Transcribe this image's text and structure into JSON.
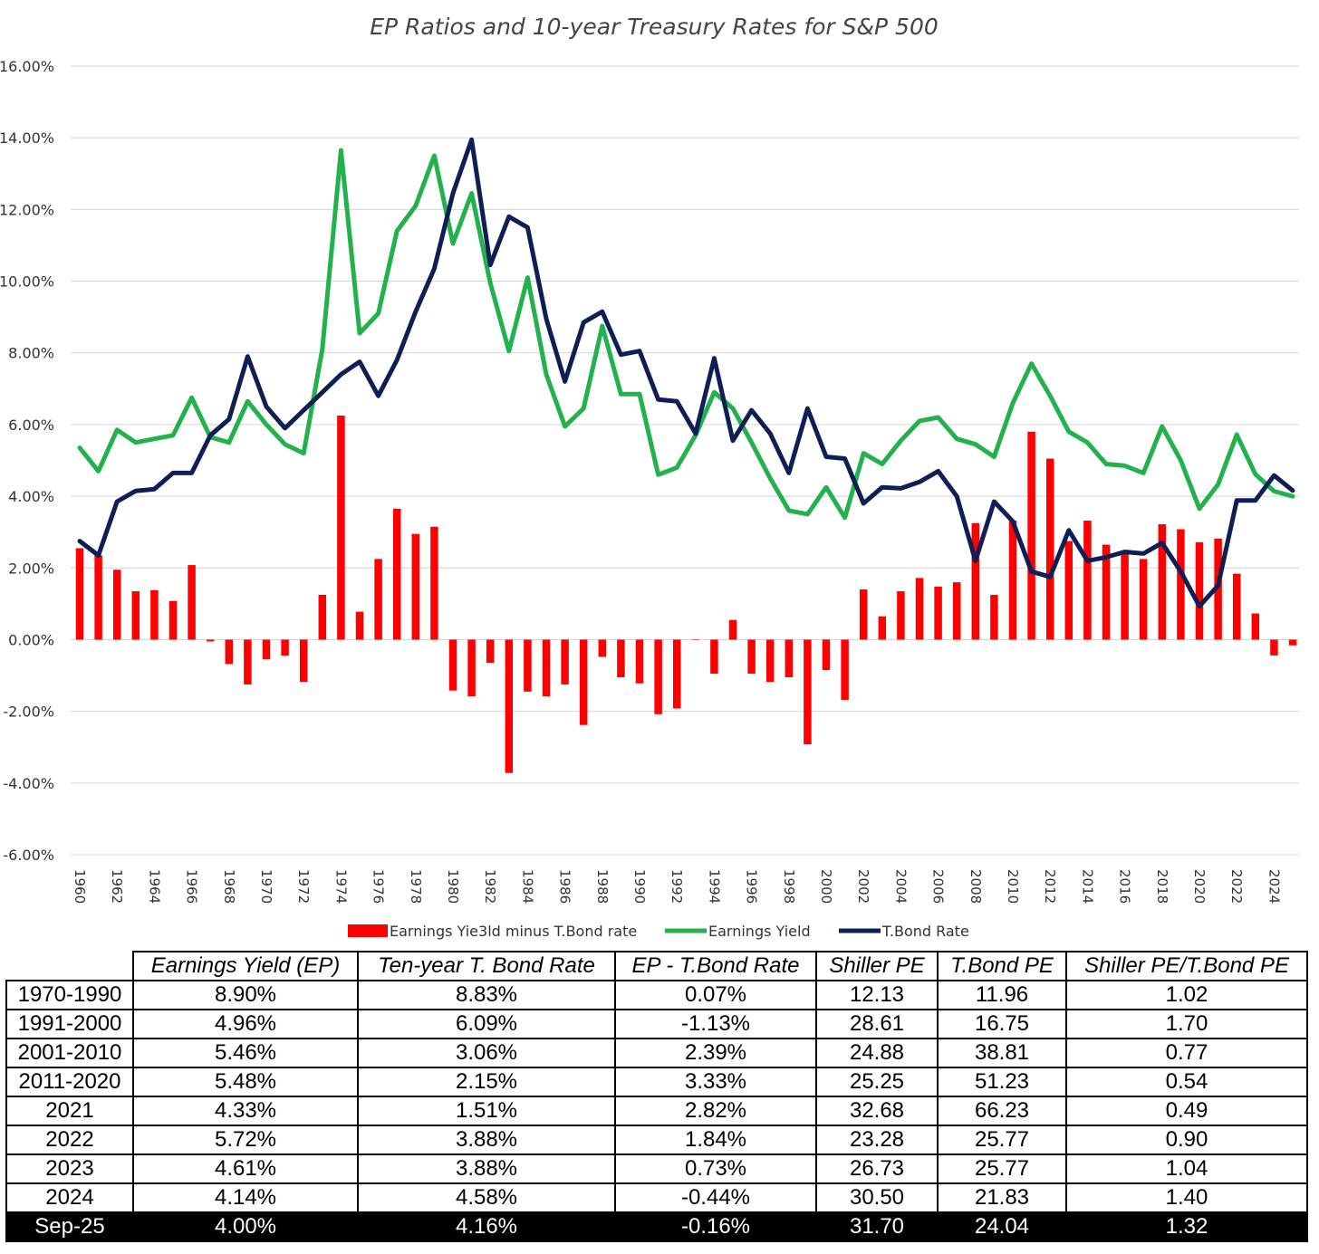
{
  "chart_data": {
    "type": "bar+line",
    "title": "EP Ratios and 10-year Treasury Rates for S&P 500",
    "ylim": [
      -6,
      16
    ],
    "y_ticks": [
      16,
      14,
      12,
      10,
      8,
      6,
      4,
      2,
      0,
      -2,
      -4,
      -6
    ],
    "y_tick_labels": [
      "16.00%",
      "14.00%",
      "12.00%",
      "10.00%",
      "8.00%",
      "6.00%",
      "4.00%",
      "2.00%",
      "0.00%",
      "-2.00%",
      "-4.00%",
      "-6.00%"
    ],
    "x_tick_labels": [
      "1960",
      "1962",
      "1964",
      "1966",
      "1968",
      "1970",
      "1972",
      "1974",
      "1976",
      "1978",
      "1980",
      "1982",
      "1984",
      "1986",
      "1988",
      "1990",
      "1992",
      "1994",
      "1996",
      "1998",
      "2000",
      "2002",
      "2004",
      "2006",
      "2008",
      "2010",
      "2012",
      "2014",
      "2016",
      "2018",
      "2020",
      "2022",
      "2024"
    ],
    "years": [
      1960,
      1961,
      1962,
      1963,
      1964,
      1965,
      1966,
      1967,
      1968,
      1969,
      1970,
      1971,
      1972,
      1973,
      1974,
      1975,
      1976,
      1977,
      1978,
      1979,
      1980,
      1981,
      1982,
      1983,
      1984,
      1985,
      1986,
      1987,
      1988,
      1989,
      1990,
      1991,
      1992,
      1993,
      1994,
      1995,
      1996,
      1997,
      1998,
      1999,
      2000,
      2001,
      2002,
      2003,
      2004,
      2005,
      2006,
      2007,
      2008,
      2009,
      2010,
      2011,
      2012,
      2013,
      2014,
      2015,
      2016,
      2017,
      2018,
      2019,
      2020,
      2021,
      2022,
      2023,
      2024,
      2025
    ],
    "series": [
      {
        "name": "Earnings Yie3ld minus T.Bond rate",
        "kind": "bar",
        "color": "#ff0000",
        "values": [
          2.55,
          2.35,
          1.95,
          1.35,
          1.38,
          1.08,
          2.08,
          -0.05,
          -0.68,
          -1.25,
          -0.55,
          -0.45,
          -1.18,
          1.25,
          6.25,
          0.78,
          2.25,
          3.65,
          2.95,
          3.15,
          -1.42,
          -1.58,
          -0.65,
          -3.72,
          -1.45,
          -1.58,
          -1.25,
          -2.38,
          -0.48,
          -1.05,
          -1.22,
          -2.08,
          -1.92,
          0.0,
          -0.95,
          0.55,
          -0.95,
          -1.18,
          -1.05,
          -2.92,
          -0.85,
          -1.68,
          1.4,
          0.65,
          1.35,
          1.72,
          1.48,
          1.6,
          3.25,
          1.25,
          3.32,
          5.8,
          5.05,
          2.75,
          3.32,
          2.65,
          2.4,
          2.25,
          3.22,
          3.08,
          2.72,
          2.82,
          1.84,
          0.73,
          -0.44,
          -0.16
        ]
      },
      {
        "name": "Earnings Yield",
        "kind": "line",
        "color": "#22b14c",
        "values": [
          5.35,
          4.7,
          5.85,
          5.5,
          5.6,
          5.7,
          6.75,
          5.65,
          5.5,
          6.65,
          6.0,
          5.45,
          5.2,
          8.1,
          13.65,
          8.55,
          9.1,
          11.4,
          12.1,
          13.5,
          11.05,
          12.45,
          9.95,
          8.05,
          10.1,
          7.4,
          5.95,
          6.45,
          8.75,
          6.85,
          6.85,
          4.6,
          4.8,
          5.7,
          6.9,
          6.45,
          5.5,
          4.5,
          3.6,
          3.5,
          4.25,
          3.4,
          5.2,
          4.9,
          5.55,
          6.1,
          6.2,
          5.6,
          5.45,
          5.1,
          6.6,
          7.7,
          6.8,
          5.8,
          5.5,
          4.9,
          4.85,
          4.65,
          5.95,
          5.0,
          3.65,
          4.33,
          5.72,
          4.61,
          4.14,
          4.0
        ]
      },
      {
        "name": "T.Bond Rate",
        "kind": "line",
        "color": "#0f1f55",
        "values": [
          2.75,
          2.35,
          3.85,
          4.15,
          4.2,
          4.65,
          4.65,
          5.7,
          6.15,
          7.9,
          6.5,
          5.9,
          6.4,
          6.9,
          7.4,
          7.75,
          6.8,
          7.8,
          9.15,
          10.35,
          12.45,
          13.95,
          10.45,
          11.8,
          11.5,
          8.95,
          7.2,
          8.85,
          9.15,
          7.95,
          8.05,
          6.7,
          6.65,
          5.75,
          7.85,
          5.55,
          6.4,
          5.75,
          4.65,
          6.45,
          5.1,
          5.05,
          3.8,
          4.25,
          4.22,
          4.4,
          4.7,
          4.0,
          2.2,
          3.85,
          3.3,
          1.9,
          1.75,
          3.05,
          2.2,
          2.3,
          2.45,
          2.4,
          2.7,
          1.9,
          0.93,
          1.51,
          3.88,
          3.88,
          4.58,
          4.16
        ]
      }
    ],
    "legend": [
      "Earnings Yie3ld minus T.Bond rate",
      "Earnings Yield",
      "T.Bond Rate"
    ],
    "legend_position": "bottom-center",
    "grid": true
  },
  "summary_table": {
    "headers": [
      "",
      "Earnings Yield (EP)",
      "Ten-year T. Bond Rate",
      "EP - T.Bond Rate",
      "Shiller PE",
      "T.Bond PE",
      "Shiller PE/T.Bond PE"
    ],
    "rows": [
      [
        "1970-1990",
        "8.90%",
        "8.83%",
        "0.07%",
        "12.13",
        "11.96",
        "1.02"
      ],
      [
        "1991-2000",
        "4.96%",
        "6.09%",
        "-1.13%",
        "28.61",
        "16.75",
        "1.70"
      ],
      [
        "2001-2010",
        "5.46%",
        "3.06%",
        "2.39%",
        "24.88",
        "38.81",
        "0.77"
      ],
      [
        "2011-2020",
        "5.48%",
        "2.15%",
        "3.33%",
        "25.25",
        "51.23",
        "0.54"
      ],
      [
        "2021",
        "4.33%",
        "1.51%",
        "2.82%",
        "32.68",
        "66.23",
        "0.49"
      ],
      [
        "2022",
        "5.72%",
        "3.88%",
        "1.84%",
        "23.28",
        "25.77",
        "0.90"
      ],
      [
        "2023",
        "4.61%",
        "3.88%",
        "0.73%",
        "26.73",
        "25.77",
        "1.04"
      ],
      [
        "2024",
        "4.14%",
        "4.58%",
        "-0.44%",
        "30.50",
        "21.83",
        "1.40"
      ],
      [
        "Sep-25",
        "4.00%",
        "4.16%",
        "-0.16%",
        "31.70",
        "24.04",
        "1.32"
      ]
    ]
  }
}
